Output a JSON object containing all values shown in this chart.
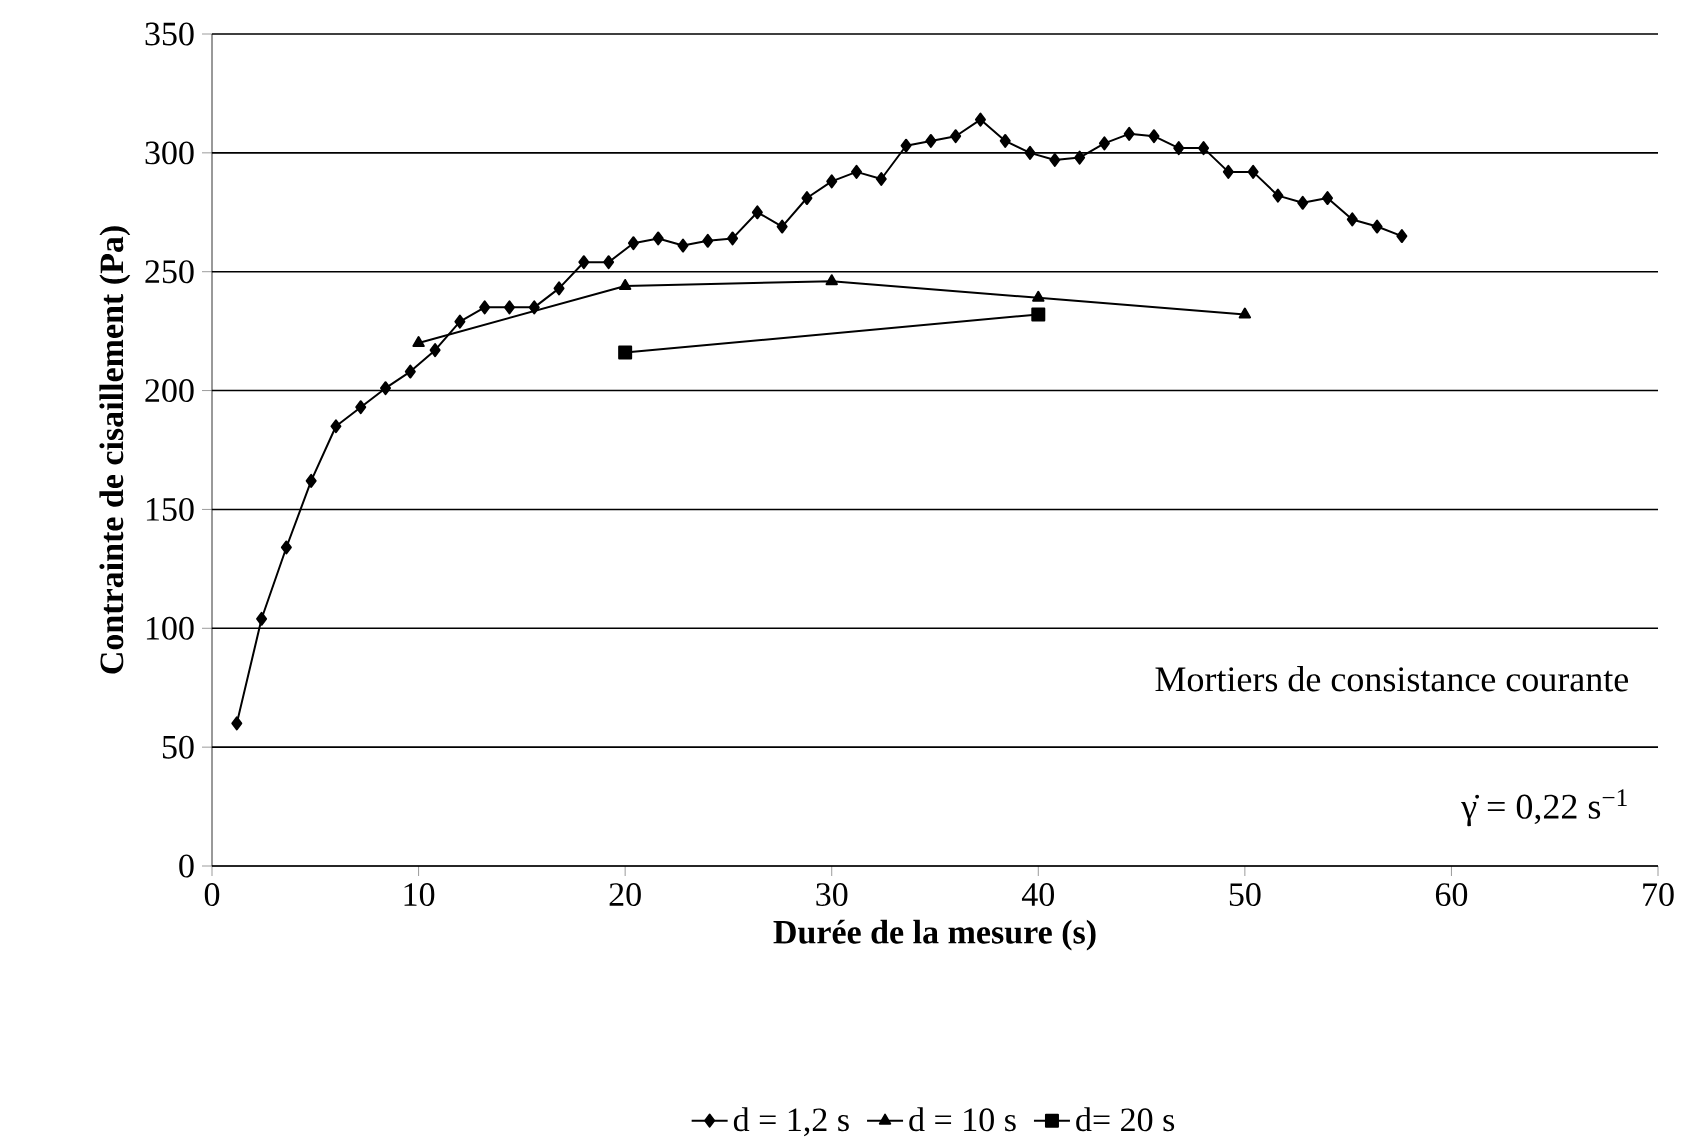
{
  "chart_data": {
    "type": "line",
    "xlabel": "Durée de la mesure (s)",
    "ylabel": "Contrainte de cisaillement (Pa)",
    "xlim": [
      0,
      70
    ],
    "xticks": [
      0,
      10,
      20,
      30,
      40,
      50,
      60,
      70
    ],
    "ylim": [
      0,
      350
    ],
    "yticks": [
      0,
      50,
      100,
      150,
      200,
      250,
      300,
      350
    ],
    "grid": "y",
    "legend": "bottom",
    "line_style": "solid",
    "annotations": [
      "Mortiers de consistance courante",
      "γ̇ = 0,22 s$^{−1}$"
    ],
    "series": [
      {
        "name": "d = 1,2 s",
        "color": "#000000",
        "marker": "diamond",
        "x": [
          1.2,
          2.4,
          3.6,
          4.8,
          6.0,
          7.2,
          8.4,
          9.6,
          10.8,
          12.0,
          13.2,
          14.4,
          15.6,
          16.8,
          18.0,
          19.2,
          20.4,
          21.6,
          22.8,
          24.0,
          25.2,
          26.4,
          27.6,
          28.8,
          30.0,
          31.2,
          32.4,
          33.6,
          34.8,
          36.0,
          37.2,
          38.4,
          39.6,
          40.8,
          42.0,
          43.2,
          44.4,
          45.6,
          46.8,
          48.0,
          49.2,
          50.4,
          51.6,
          52.8,
          54.0,
          55.2,
          56.4,
          57.6
        ],
        "values": [
          60,
          104,
          134,
          162,
          185,
          193,
          201,
          208,
          217,
          229,
          235,
          235,
          235,
          243,
          254,
          254,
          262,
          264,
          261,
          263,
          264,
          275,
          269,
          281,
          288,
          292,
          289,
          303,
          305,
          307,
          314,
          305,
          300,
          297,
          298,
          304,
          308,
          307,
          302,
          302,
          292,
          292,
          282,
          279,
          281,
          272,
          269,
          265
        ]
      },
      {
        "name": "d = 10 s",
        "color": "#000000",
        "marker": "triangle",
        "x": [
          10,
          20,
          30,
          40,
          50
        ],
        "values": [
          220,
          244,
          246,
          239,
          232
        ]
      },
      {
        "name": "d= 20 s",
        "color": "#000000",
        "marker": "square",
        "x": [
          20,
          40
        ],
        "values": [
          216,
          232
        ]
      }
    ]
  }
}
